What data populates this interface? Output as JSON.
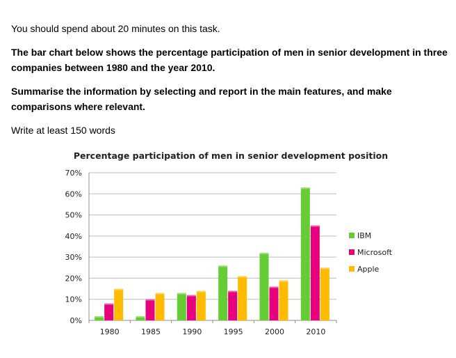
{
  "task": {
    "intro": "You should spend about 20 minutes on this task.",
    "description": "The bar chart below shows the percentage participation of men in senior development in three companies between 1980 and the year 2010.",
    "instruction": "Summarise the information by selecting and report in the main features, and make comparisons where relevant.",
    "word_count": "Write at least 150 words"
  },
  "chart_data": {
    "type": "bar",
    "title": "Percentage participation of men in senior development position",
    "categories": [
      "1980",
      "1985",
      "1990",
      "1995",
      "2000",
      "2010"
    ],
    "series": [
      {
        "name": "IBM",
        "color": "#66cc33",
        "values": [
          2,
          2,
          13,
          26,
          32,
          63
        ]
      },
      {
        "name": "Microsoft",
        "color": "#e6007e",
        "values": [
          8,
          10,
          12,
          14,
          16,
          45
        ]
      },
      {
        "name": "Apple",
        "color": "#ffbb00",
        "values": [
          15,
          13,
          14,
          21,
          19,
          25
        ]
      }
    ],
    "ylim": [
      0,
      70
    ],
    "yticks": [
      0,
      10,
      20,
      30,
      40,
      50,
      60,
      70
    ],
    "ytick_labels": [
      "0%",
      "10%",
      "20%",
      "30%",
      "40%",
      "50%",
      "60%",
      "70%"
    ],
    "grid": true,
    "legend_position": "right"
  }
}
